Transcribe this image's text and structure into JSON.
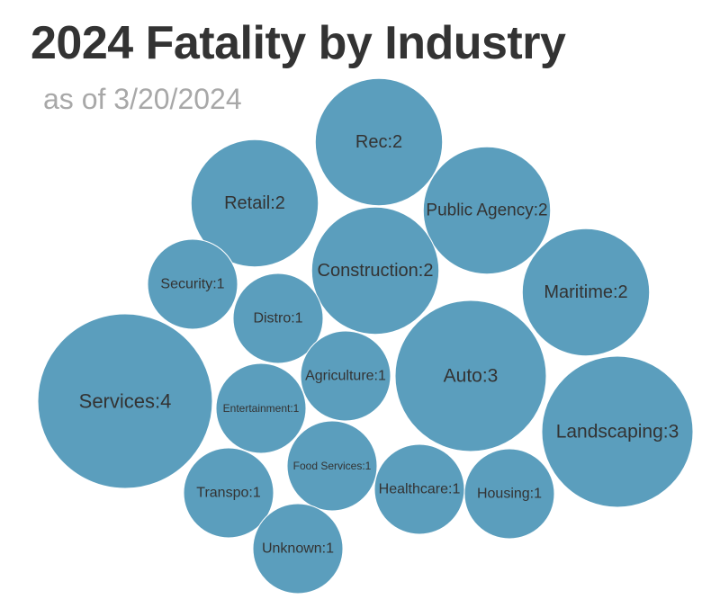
{
  "chart_data": {
    "type": "bubble",
    "title": "2024 Fatality by Industry",
    "subtitle": "as of 3/20/2024",
    "color": "#5b9ebd",
    "label_color": "#333333",
    "bubbles": [
      {
        "label": "Rec:2",
        "category": "Rec",
        "value": 2
      },
      {
        "label": "Retail:2",
        "category": "Retail",
        "value": 2
      },
      {
        "label": "Public Agency:2",
        "category": "Public Agency",
        "value": 2
      },
      {
        "label": "Construction:2",
        "category": "Construction",
        "value": 2
      },
      {
        "label": "Maritime:2",
        "category": "Maritime",
        "value": 2
      },
      {
        "label": "Security:1",
        "category": "Security",
        "value": 1
      },
      {
        "label": "Distro:1",
        "category": "Distro",
        "value": 1
      },
      {
        "label": "Services:4",
        "category": "Services",
        "value": 4
      },
      {
        "label": "Agriculture:1",
        "category": "Agriculture",
        "value": 1
      },
      {
        "label": "Auto:3",
        "category": "Auto",
        "value": 3
      },
      {
        "label": "Entertainment:1",
        "category": "Entertainment",
        "value": 1
      },
      {
        "label": "Landscaping:3",
        "category": "Landscaping",
        "value": 3
      },
      {
        "label": "Food Services:1",
        "category": "Food Services",
        "value": 1
      },
      {
        "label": "Transpo:1",
        "category": "Transpo",
        "value": 1
      },
      {
        "label": "Healthcare:1",
        "category": "Healthcare",
        "value": 1
      },
      {
        "label": "Housing:1",
        "category": "Housing",
        "value": 1
      },
      {
        "label": "Unknown:1",
        "category": "Unknown",
        "value": 1
      }
    ]
  }
}
